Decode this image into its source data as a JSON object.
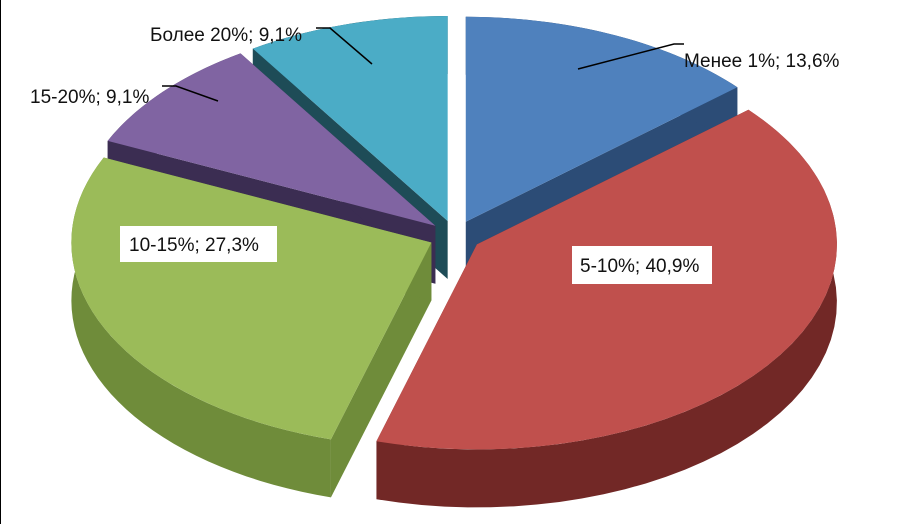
{
  "chart_data": {
    "type": "pie",
    "title": "",
    "slices": [
      {
        "name": "Менее 1%",
        "value": 13.6,
        "label": "Менее 1%; 13,6%",
        "top": "#4f81bd",
        "side": "#2c4c76"
      },
      {
        "name": "5-10%",
        "value": 40.9,
        "label": "5-10%; 40,9%",
        "top": "#c0504d",
        "side": "#722826"
      },
      {
        "name": "10-15%",
        "value": 27.3,
        "label": "10-15%; 27,3%",
        "top": "#9bbb59",
        "side": "#6f8c3a"
      },
      {
        "name": "15-20%",
        "value": 9.1,
        "label": "15-20%; 9,1%",
        "top": "#8064a2",
        "side": "#3b2d52"
      },
      {
        "name": "Более 20%",
        "value": 9.1,
        "label": "Более 20%; 9,1%",
        "top": "#4bacc6",
        "side": "#1e4c57"
      }
    ]
  }
}
